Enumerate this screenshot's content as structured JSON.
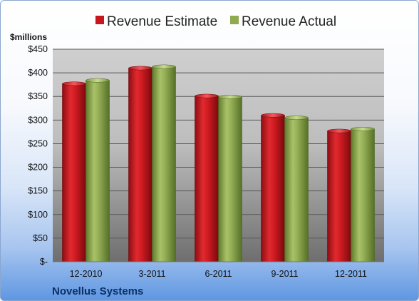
{
  "chart_data": {
    "type": "bar",
    "title": "",
    "units_label": "$millions",
    "categories": [
      "12-2010",
      "3-2011",
      "6-2011",
      "9-2011",
      "12-2011"
    ],
    "series": [
      {
        "name": "Revenue Estimate",
        "color": "#c8161d",
        "values": [
          377,
          410,
          351,
          310,
          277
        ]
      },
      {
        "name": "Revenue Actual",
        "color": "#8faa4f",
        "values": [
          384,
          413,
          349,
          305,
          281
        ]
      }
    ],
    "ylim": [
      0,
      450
    ],
    "yticks": [
      0,
      50,
      100,
      150,
      200,
      250,
      300,
      350,
      400,
      450
    ],
    "ytick_labels": [
      "$-",
      "$50",
      "$100",
      "$150",
      "$200",
      "$250",
      "$300",
      "$350",
      "$400",
      "$450"
    ],
    "grid": true,
    "legend_position": "top"
  },
  "footer": {
    "company": "Novellus Systems"
  }
}
